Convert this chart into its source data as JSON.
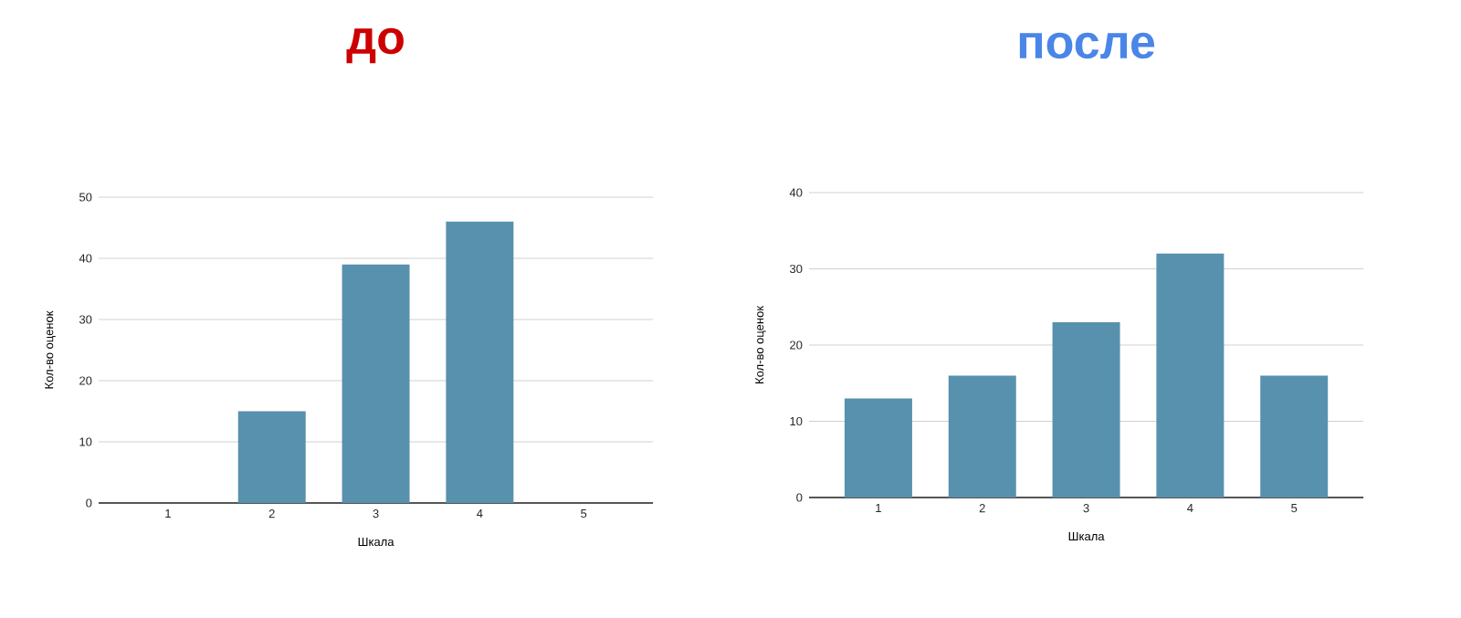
{
  "chart_data": [
    {
      "type": "bar",
      "title": "до",
      "xlabel": "Шкала",
      "ylabel": "Кол-во оценок",
      "categories": [
        "1",
        "2",
        "3",
        "4",
        "5"
      ],
      "values": [
        0,
        15,
        39,
        46,
        0
      ],
      "color": "#5891ad",
      "ylim": [
        0,
        50
      ],
      "yticks": [
        0,
        10,
        20,
        30,
        40,
        50
      ],
      "grid": "y"
    },
    {
      "type": "bar",
      "title": "после",
      "xlabel": "Шкала",
      "ylabel": "Кол-во оценок",
      "categories": [
        "1",
        "2",
        "3",
        "4",
        "5"
      ],
      "values": [
        13,
        16,
        23,
        32,
        16
      ],
      "color": "#5891ad",
      "ylim": [
        0,
        40
      ],
      "yticks": [
        0,
        10,
        20,
        30,
        40
      ],
      "grid": "y"
    }
  ]
}
